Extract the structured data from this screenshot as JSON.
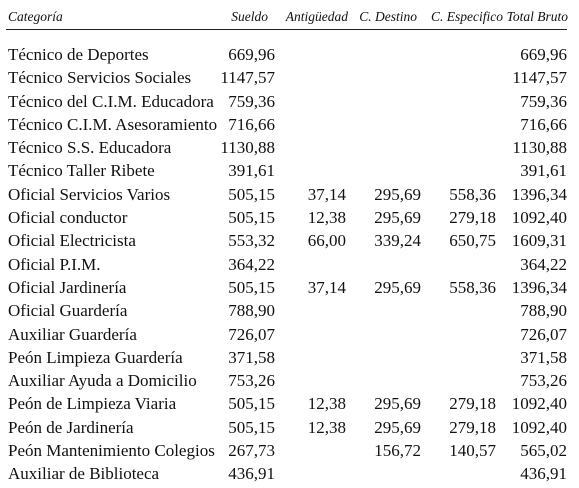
{
  "headers": {
    "categoria": "Categoría",
    "sueldo": "Sueldo",
    "antiguedad": "Antigüedad",
    "c_destino": "C. Destino",
    "c_especifico": "C. Especifico",
    "total_bruto": "Total Bruto"
  },
  "rows": [
    {
      "categoria": "Técnico de Deportes",
      "sueldo": "669,96",
      "antiguedad": "",
      "c_destino": "",
      "c_especifico": "",
      "total_bruto": "669,96"
    },
    {
      "categoria": "Técnico Servicios Sociales",
      "sueldo": "1147,57",
      "antiguedad": "",
      "c_destino": "",
      "c_especifico": "",
      "total_bruto": "1147,57"
    },
    {
      "categoria": "Técnico del C.I.M. Educadora",
      "sueldo": "759,36",
      "antiguedad": "",
      "c_destino": "",
      "c_especifico": "",
      "total_bruto": "759,36"
    },
    {
      "categoria": "Técnico C.I.M. Asesoramiento",
      "sueldo": "716,66",
      "antiguedad": "",
      "c_destino": "",
      "c_especifico": "",
      "total_bruto": "716,66"
    },
    {
      "categoria": "Técnico S.S. Educadora",
      "sueldo": "1130,88",
      "antiguedad": "",
      "c_destino": "",
      "c_especifico": "",
      "total_bruto": "1130,88"
    },
    {
      "categoria": "Técnico Taller Ribete",
      "sueldo": "391,61",
      "antiguedad": "",
      "c_destino": "",
      "c_especifico": "",
      "total_bruto": "391,61"
    },
    {
      "categoria": "Oficial Servicios Varios",
      "sueldo": "505,15",
      "antiguedad": "37,14",
      "c_destino": "295,69",
      "c_especifico": "558,36",
      "total_bruto": "1396,34"
    },
    {
      "categoria": "Oficial conductor",
      "sueldo": "505,15",
      "antiguedad": "12,38",
      "c_destino": "295,69",
      "c_especifico": "279,18",
      "total_bruto": "1092,40"
    },
    {
      "categoria": "Oficial Electricista",
      "sueldo": "553,32",
      "antiguedad": "66,00",
      "c_destino": "339,24",
      "c_especifico": "650,75",
      "total_bruto": "1609,31"
    },
    {
      "categoria": "Oficial P.I.M.",
      "sueldo": "364,22",
      "antiguedad": "",
      "c_destino": "",
      "c_especifico": "",
      "total_bruto": "364,22"
    },
    {
      "categoria": "Oficial Jardinería",
      "sueldo": "505,15",
      "antiguedad": "37,14",
      "c_destino": "295,69",
      "c_especifico": "558,36",
      "total_bruto": "1396,34"
    },
    {
      "categoria": "Oficial Guardería",
      "sueldo": "788,90",
      "antiguedad": "",
      "c_destino": "",
      "c_especifico": "",
      "total_bruto": "788,90"
    },
    {
      "categoria": "Auxiliar Guardería",
      "sueldo": "726,07",
      "antiguedad": "",
      "c_destino": "",
      "c_especifico": "",
      "total_bruto": "726,07"
    },
    {
      "categoria": "Peón Limpieza Guardería",
      "sueldo": "371,58",
      "antiguedad": "",
      "c_destino": "",
      "c_especifico": "",
      "total_bruto": "371,58"
    },
    {
      "categoria": "Auxiliar Ayuda a Domicilio",
      "sueldo": "753,26",
      "antiguedad": "",
      "c_destino": "",
      "c_especifico": "",
      "total_bruto": "753,26"
    },
    {
      "categoria": "Peón de Limpieza Viaria",
      "sueldo": "505,15",
      "antiguedad": "12,38",
      "c_destino": "295,69",
      "c_especifico": "279,18",
      "total_bruto": "1092,40"
    },
    {
      "categoria": "Peón de Jardinería",
      "sueldo": "505,15",
      "antiguedad": "12,38",
      "c_destino": "295,69",
      "c_especifico": "279,18",
      "total_bruto": "1092,40"
    },
    {
      "categoria": "Peón Mantenimiento Colegios",
      "sueldo": "267,73",
      "antiguedad": "",
      "c_destino": "156,72",
      "c_especifico": "140,57",
      "total_bruto": "565,02"
    },
    {
      "categoria": "Auxiliar de Biblioteca",
      "sueldo": "436,91",
      "antiguedad": "",
      "c_destino": "",
      "c_especifico": "",
      "total_bruto": "436,91"
    }
  ]
}
